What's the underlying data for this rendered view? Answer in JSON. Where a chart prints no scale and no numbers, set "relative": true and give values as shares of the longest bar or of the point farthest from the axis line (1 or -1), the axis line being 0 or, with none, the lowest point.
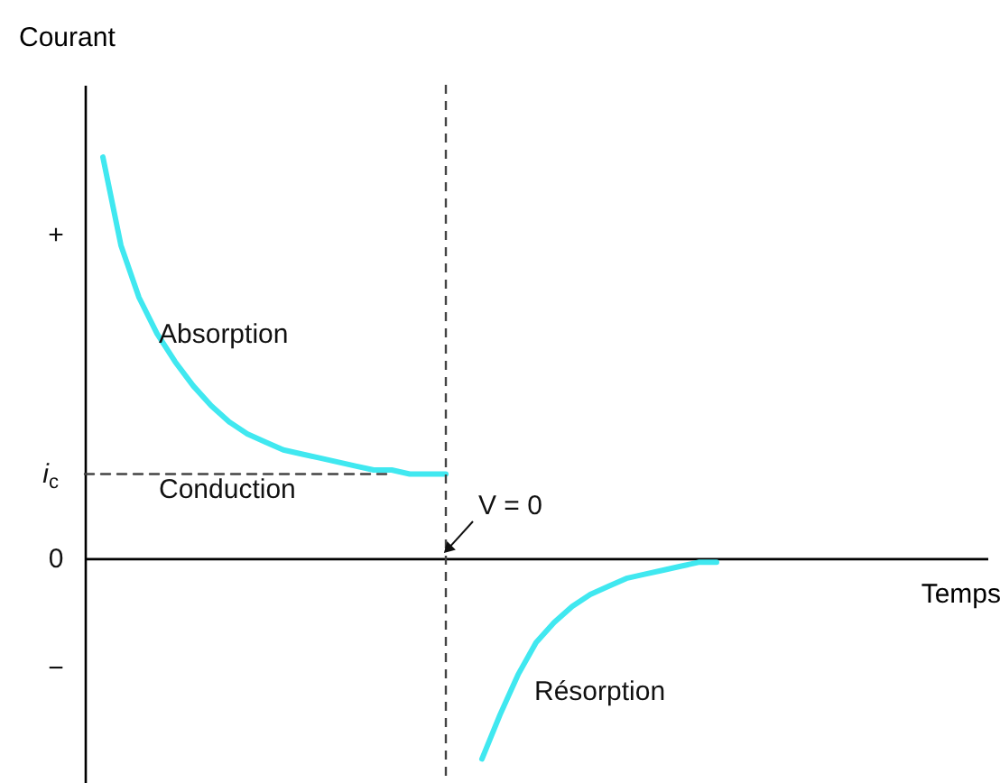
{
  "chart_data": {
    "type": "line",
    "relative": true,
    "xlabel": "Temps",
    "ylabel": "Courant",
    "categories": [
      null,
      null,
      null,
      null,
      null,
      null,
      null,
      null,
      null,
      null,
      null,
      null,
      null,
      null,
      null,
      null,
      null,
      null,
      null,
      null,
      null,
      null,
      null,
      null,
      null,
      null,
      null,
      null,
      null,
      null,
      null,
      null,
      null,
      null,
      null,
      null,
      null,
      null,
      null,
      null,
      null,
      null,
      null,
      null,
      null,
      null,
      null,
      null,
      null,
      null,
      null
    ],
    "series": [
      {
        "name": "i$_{c}$",
        "color": "#444444",
        "line_style": "dashed",
        "values": [
          0.21,
          0.21,
          0.21,
          0.21,
          0.21,
          0.21,
          0.21,
          0.21,
          0.21,
          0.21,
          0.21,
          0.21,
          0.21,
          0.21,
          0.21,
          0.21,
          0.21,
          0.21,
          null,
          null,
          null,
          null,
          null,
          null,
          null,
          null,
          null,
          null,
          null,
          null,
          null,
          null,
          null,
          null,
          null,
          null,
          null,
          null,
          null,
          null,
          null,
          null,
          null,
          null,
          null,
          null,
          null,
          null,
          null,
          null,
          null
        ]
      },
      {
        "name": "Absorption",
        "color": "#40e8f0",
        "values": [
          null,
          1.0,
          0.78,
          0.65,
          0.56,
          0.49,
          0.43,
          0.38,
          0.34,
          0.31,
          0.29,
          0.27,
          0.26,
          0.25,
          0.24,
          0.23,
          0.22,
          0.22,
          0.21,
          0.21,
          0.21,
          null,
          null,
          null,
          null,
          null,
          null,
          null,
          null,
          null,
          null,
          null,
          null,
          null,
          null,
          null,
          null,
          null,
          null,
          null,
          null,
          null,
          null,
          null,
          null,
          null,
          null,
          null,
          null,
          null,
          null
        ]
      },
      {
        "name": "Résorption",
        "color": "#40e8f0",
        "values": [
          null,
          null,
          null,
          null,
          null,
          null,
          null,
          null,
          null,
          null,
          null,
          null,
          null,
          null,
          null,
          null,
          null,
          null,
          null,
          null,
          null,
          null,
          -0.5,
          -0.39,
          -0.29,
          -0.21,
          -0.16,
          -0.12,
          -0.09,
          -0.07,
          -0.05,
          -0.04,
          -0.03,
          -0.02,
          -0.01,
          -0.01,
          null,
          null,
          null,
          null,
          null,
          null,
          null,
          null,
          null,
          null,
          null,
          null,
          null,
          null,
          null
        ]
      }
    ],
    "annotations": [
      "+",
      "0",
      "−",
      "Conduction",
      "V = 0"
    ]
  }
}
